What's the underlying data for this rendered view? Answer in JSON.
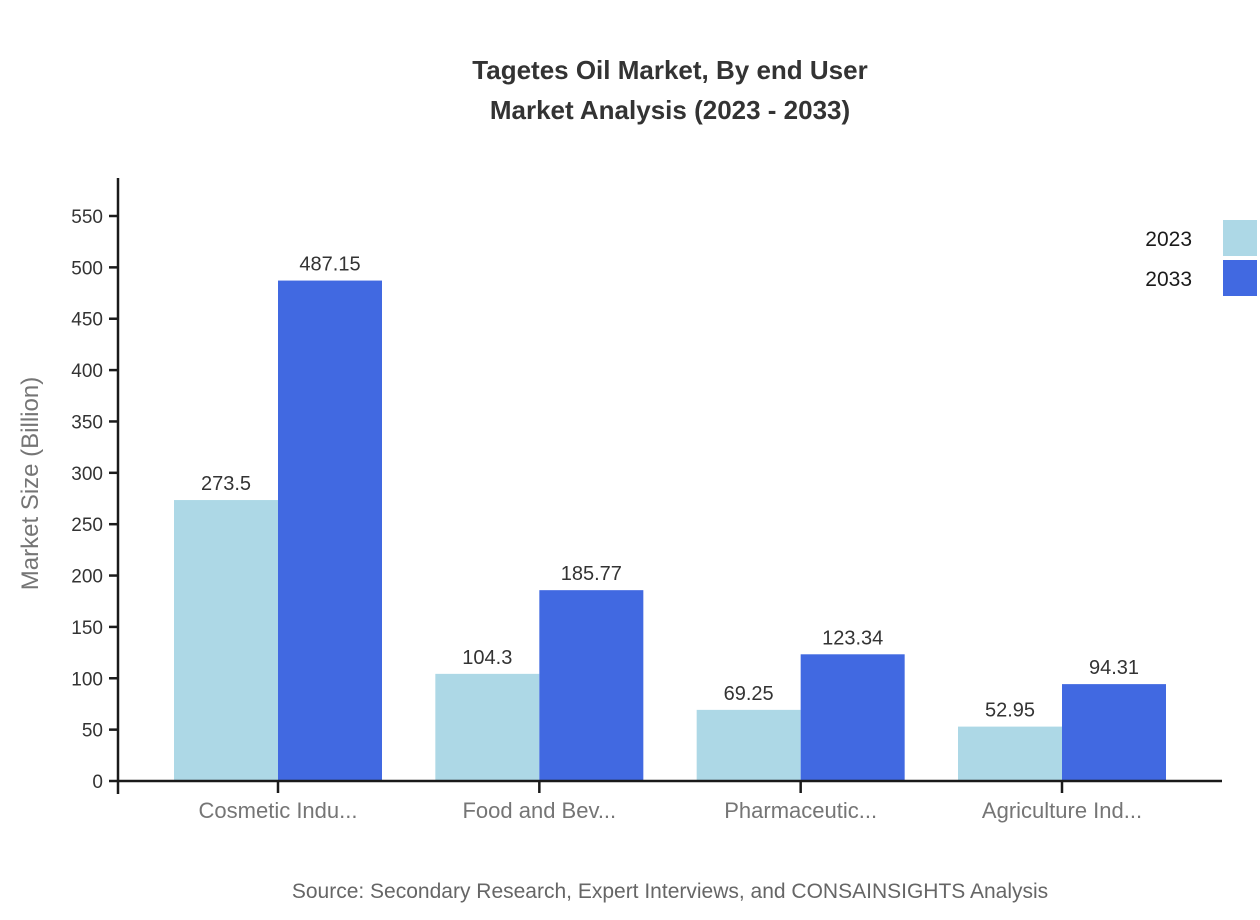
{
  "title": {
    "line1": "Tagetes Oil Market, By end User",
    "line2": "Market Analysis (2023 - 2033)"
  },
  "source_note": "Source: Secondary Research, Expert Interviews, and CONSAINSIGHTS Analysis",
  "colors": {
    "series_2023": "#ADD8E6",
    "series_2033": "#4169E1",
    "title_text": "#333333",
    "value_label_text": "#333333",
    "tick_label_text": "#333333",
    "category_label_text": "#757575",
    "axis_title_text": "#757575",
    "source_text": "#666666",
    "axis_line": "#1a1a1a",
    "background": "#ffffff"
  },
  "chart_data": {
    "type": "bar",
    "title": "Tagetes Oil Market, By end User Market Analysis (2023 - 2033)",
    "categories": [
      "Cosmetic Indu...",
      "Food and Bev...",
      "Pharmaceutic...",
      "Agriculture Ind..."
    ],
    "series": [
      {
        "name": "2023",
        "color": "#ADD8E6",
        "values": [
          273.5,
          104.3,
          69.25,
          52.95
        ]
      },
      {
        "name": "2033",
        "color": "#4169E1",
        "values": [
          487.15,
          185.77,
          123.34,
          94.31
        ]
      }
    ],
    "xlabel": "",
    "ylabel": "Market Size (Billion)",
    "ylim": [
      0,
      585
    ],
    "yticks": [
      0,
      50,
      100,
      150,
      200,
      250,
      300,
      350,
      400,
      450,
      500,
      550
    ],
    "grid": false,
    "legend_position": "top-right",
    "value_labels": true
  }
}
